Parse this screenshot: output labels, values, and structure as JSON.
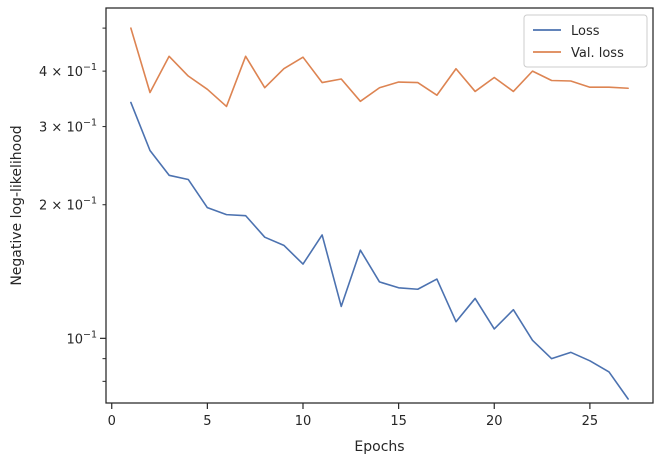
{
  "chart_data": {
    "type": "line",
    "title": "",
    "xlabel": "Epochs",
    "ylabel": "Negative log-likelihood",
    "yscale": "log",
    "xlim": [
      -0.3,
      28.3
    ],
    "ylim": [
      0.0715,
      0.555
    ],
    "grid": false,
    "legend_position": "top-right",
    "x": [
      1,
      2,
      3,
      4,
      5,
      6,
      7,
      8,
      9,
      10,
      11,
      12,
      13,
      14,
      15,
      16,
      17,
      18,
      19,
      20,
      21,
      22,
      23,
      24,
      25,
      26,
      27
    ],
    "x_ticks": [
      {
        "value": 0,
        "label": "0"
      },
      {
        "value": 5,
        "label": "5"
      },
      {
        "value": 10,
        "label": "10"
      },
      {
        "value": 15,
        "label": "15"
      },
      {
        "value": 20,
        "label": "20"
      },
      {
        "value": 25,
        "label": "25"
      }
    ],
    "y_major_ticks": [
      {
        "value": 0.1,
        "base": "10",
        "exp": "−1"
      }
    ],
    "y_minor_ticks": [
      {
        "value": 0.2,
        "mant": "2",
        "base": "10",
        "exp": "−1"
      },
      {
        "value": 0.3,
        "mant": "3",
        "base": "10",
        "exp": "−1"
      },
      {
        "value": 0.4,
        "mant": "4",
        "base": "10",
        "exp": "−1"
      }
    ],
    "y_minor_unlabeled": [
      0.08,
      0.09,
      0.5
    ],
    "series": [
      {
        "name": "Loss",
        "color": "#4c72b0",
        "values": [
          0.34,
          0.265,
          0.233,
          0.228,
          0.197,
          0.19,
          0.189,
          0.169,
          0.162,
          0.147,
          0.171,
          0.118,
          0.158,
          0.134,
          0.13,
          0.129,
          0.136,
          0.109,
          0.123,
          0.105,
          0.116,
          0.099,
          0.09,
          0.093,
          0.089,
          0.084,
          0.073
        ]
      },
      {
        "name": "Val. loss",
        "color": "#dd8452",
        "values": [
          0.5,
          0.358,
          0.432,
          0.39,
          0.364,
          0.333,
          0.432,
          0.367,
          0.405,
          0.43,
          0.377,
          0.384,
          0.342,
          0.367,
          0.378,
          0.377,
          0.353,
          0.405,
          0.36,
          0.387,
          0.36,
          0.4,
          0.381,
          0.38,
          0.368,
          0.368,
          0.366
        ]
      }
    ]
  }
}
